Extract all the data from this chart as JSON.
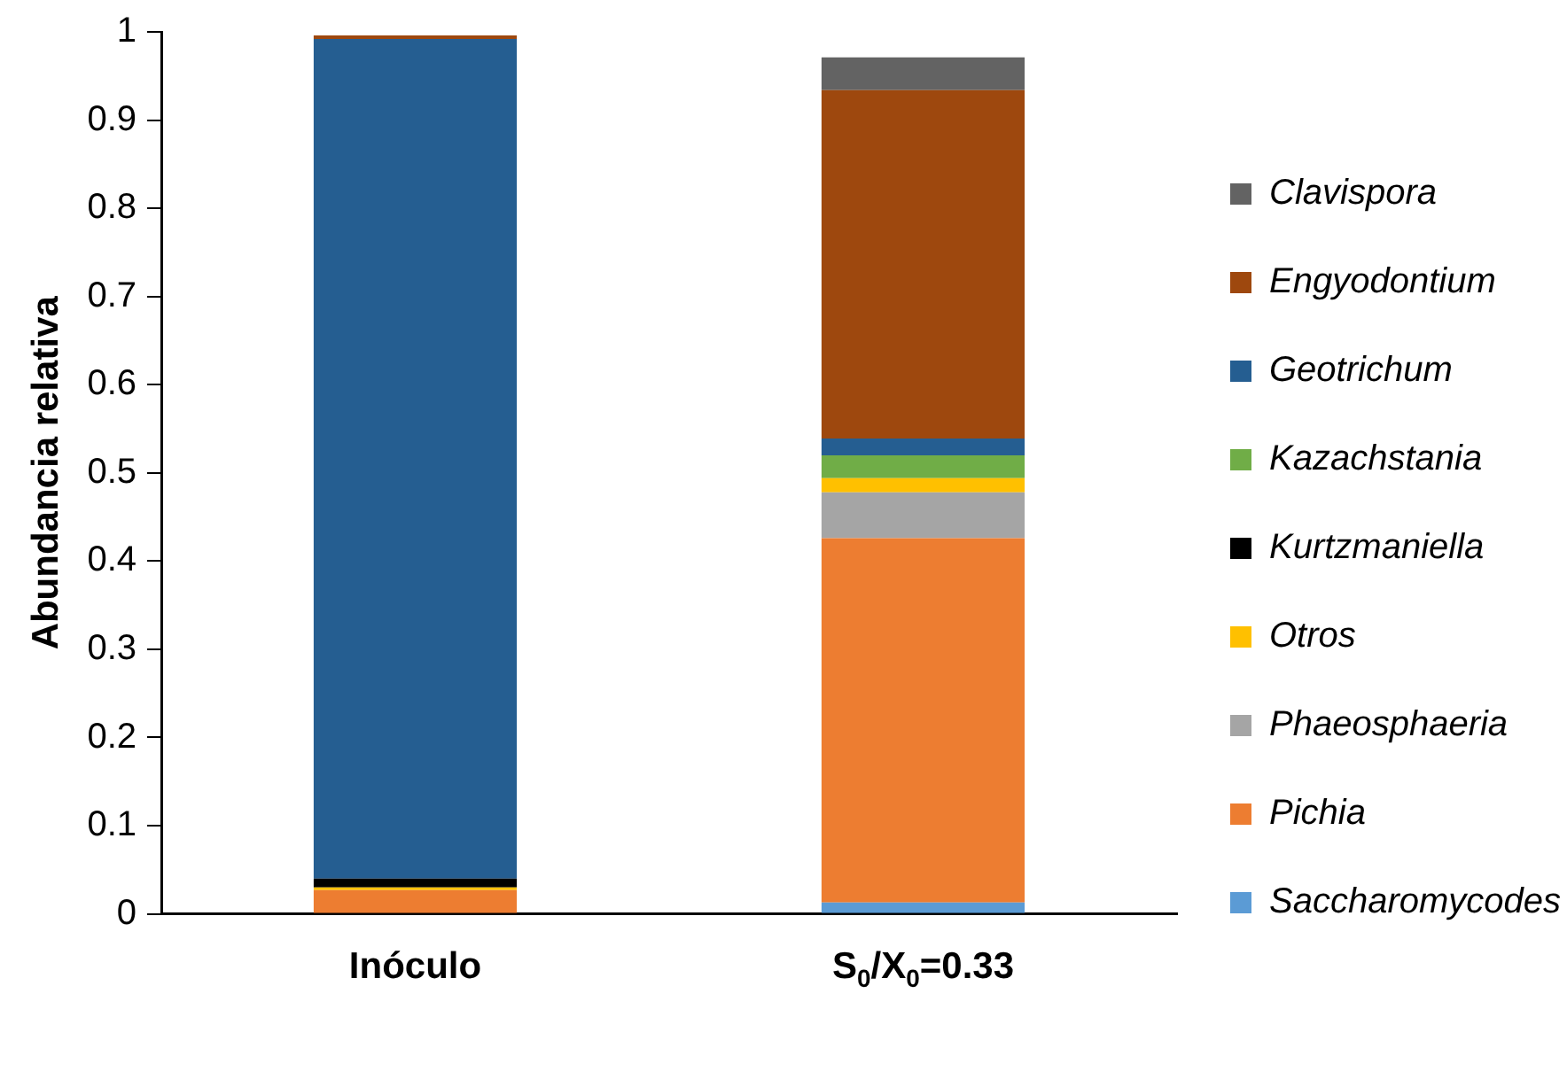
{
  "chart_data": {
    "type": "bar",
    "stacked": true,
    "ylabel": "Abundancia relativa",
    "categories": [
      "Inóculo",
      "S$_{0}$/X$_{0}$=0.33"
    ],
    "ylim": [
      0,
      1
    ],
    "yticks": [
      0,
      0.1,
      0.2,
      0.3,
      0.4,
      0.5,
      0.6,
      0.7,
      0.8,
      0.9,
      1
    ],
    "grid": false,
    "legend": "right",
    "series": [
      {
        "name": "Saccharomycodes",
        "color": "#5b9bd5",
        "values": [
          0,
          0.013
        ]
      },
      {
        "name": "Pichia",
        "color": "#ed7d31",
        "values": [
          0.027,
          0.413
        ]
      },
      {
        "name": "Phaeosphaeria",
        "color": "#a5a5a5",
        "values": [
          0,
          0.052
        ]
      },
      {
        "name": "Otros",
        "color": "#ffc000",
        "values": [
          0.003,
          0.016
        ]
      },
      {
        "name": "Kurtzmaniella",
        "color": "#000000",
        "values": [
          0.01,
          0
        ]
      },
      {
        "name": "Kazachstania",
        "color": "#70ad47",
        "values": [
          0,
          0.026
        ]
      },
      {
        "name": "Geotrichum",
        "color": "#255e91",
        "values": [
          0.952,
          0.019
        ]
      },
      {
        "name": "Engyodontium",
        "color": "#9e480e",
        "values": [
          0.004,
          0.395
        ]
      },
      {
        "name": "Clavispora",
        "color": "#636363",
        "values": [
          0,
          0.037
        ]
      }
    ]
  }
}
